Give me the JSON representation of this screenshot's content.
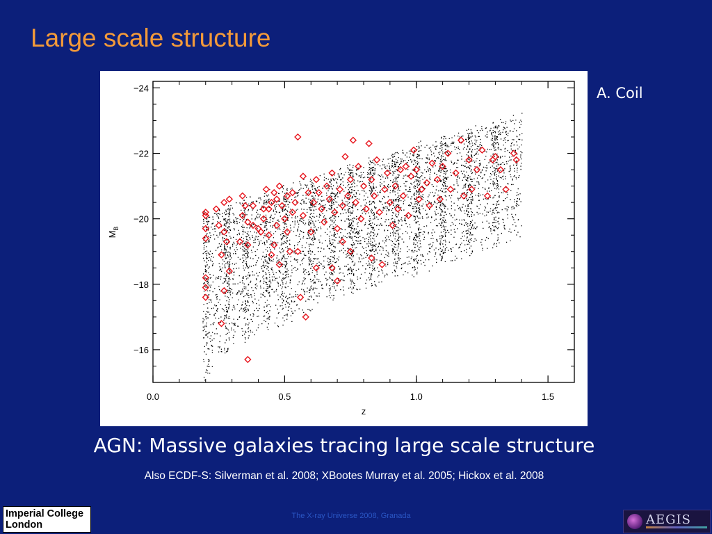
{
  "slide": {
    "title": "Large scale structure",
    "credit": "A. Coil",
    "headline": "AGN: Massive galaxies tracing large scale structure",
    "subline": "Also ECDF-S: Silverman et al. 2008; XBootes Murray et al. 2005; Hickox et al. 2008",
    "footer": "The X-ray Universe 2008, Granada",
    "logo_left": [
      "Imperial College",
      "London"
    ],
    "logo_right": "AEGIS"
  },
  "colors": {
    "background": "#0c1f7a",
    "title": "#f39a3a",
    "agn_marker": "#e8141c",
    "galaxy_point": "#000000"
  },
  "chart_data": {
    "type": "scatter",
    "title": "",
    "xlabel": "z",
    "ylabel": "M",
    "ylabel_subscript": "B",
    "xlim": [
      0.0,
      1.6
    ],
    "ylim": [
      -15.0,
      -24.2
    ],
    "y_inverted": true,
    "xticks": [
      0.0,
      0.5,
      1.0,
      1.5
    ],
    "xtick_labels": [
      "0.0",
      "0.5",
      "1.0",
      "1.5"
    ],
    "yticks": [
      -24,
      -22,
      -20,
      -18,
      -16
    ],
    "ytick_labels": [
      "−24",
      "−22",
      "−20",
      "−18",
      "−16"
    ],
    "grid": false,
    "series": [
      {
        "marker": "diamond",
        "color": "#e8141c",
        "points": [
          [
            0.2,
            -20.2
          ],
          [
            0.2,
            -20.1
          ],
          [
            0.2,
            -19.7
          ],
          [
            0.2,
            -19.4
          ],
          [
            0.2,
            -18.2
          ],
          [
            0.2,
            -17.9
          ],
          [
            0.2,
            -17.6
          ],
          [
            0.24,
            -20.3
          ],
          [
            0.25,
            -19.8
          ],
          [
            0.26,
            -18.9
          ],
          [
            0.27,
            -20.5
          ],
          [
            0.27,
            -19.6
          ],
          [
            0.27,
            -17.8
          ],
          [
            0.28,
            -19.3
          ],
          [
            0.29,
            -20.6
          ],
          [
            0.29,
            -18.4
          ],
          [
            0.26,
            -16.8
          ],
          [
            0.33,
            -19.3
          ],
          [
            0.34,
            -20.7
          ],
          [
            0.34,
            -20.1
          ],
          [
            0.35,
            -20.4
          ],
          [
            0.36,
            -19.9
          ],
          [
            0.36,
            -19.2
          ],
          [
            0.36,
            -15.7
          ],
          [
            0.38,
            -20.4
          ],
          [
            0.38,
            -19.8
          ],
          [
            0.4,
            -19.7
          ],
          [
            0.41,
            -19.6
          ],
          [
            0.42,
            -20.3
          ],
          [
            0.42,
            -20.0
          ],
          [
            0.43,
            -20.9
          ],
          [
            0.44,
            -20.3
          ],
          [
            0.44,
            -19.5
          ],
          [
            0.45,
            -20.5
          ],
          [
            0.45,
            -18.9
          ],
          [
            0.46,
            -20.8
          ],
          [
            0.46,
            -19.2
          ],
          [
            0.47,
            -20.6
          ],
          [
            0.47,
            -19.8
          ],
          [
            0.48,
            -21.0
          ],
          [
            0.48,
            -18.6
          ],
          [
            0.49,
            -20.4
          ],
          [
            0.5,
            -20.0
          ],
          [
            0.51,
            -20.7
          ],
          [
            0.51,
            -19.6
          ],
          [
            0.52,
            -19.0
          ],
          [
            0.53,
            -20.8
          ],
          [
            0.53,
            -20.2
          ],
          [
            0.54,
            -20.5
          ],
          [
            0.55,
            -22.5
          ],
          [
            0.55,
            -19.0
          ],
          [
            0.56,
            -17.6
          ],
          [
            0.57,
            -21.3
          ],
          [
            0.57,
            -20.1
          ],
          [
            0.58,
            -17.0
          ],
          [
            0.59,
            -20.8
          ],
          [
            0.6,
            -19.6
          ],
          [
            0.61,
            -20.5
          ],
          [
            0.62,
            -21.2
          ],
          [
            0.62,
            -18.5
          ],
          [
            0.63,
            -20.8
          ],
          [
            0.64,
            -20.3
          ],
          [
            0.65,
            -19.9
          ],
          [
            0.66,
            -21.0
          ],
          [
            0.67,
            -20.6
          ],
          [
            0.68,
            -21.4
          ],
          [
            0.68,
            -18.5
          ],
          [
            0.69,
            -20.2
          ],
          [
            0.7,
            -19.7
          ],
          [
            0.7,
            -18.1
          ],
          [
            0.71,
            -20.9
          ],
          [
            0.72,
            -20.4
          ],
          [
            0.72,
            -19.3
          ],
          [
            0.73,
            -21.9
          ],
          [
            0.74,
            -20.7
          ],
          [
            0.75,
            -21.2
          ],
          [
            0.75,
            -19.0
          ],
          [
            0.76,
            -22.4
          ],
          [
            0.77,
            -20.5
          ],
          [
            0.78,
            -21.6
          ],
          [
            0.79,
            -20.0
          ],
          [
            0.8,
            -21.0
          ],
          [
            0.81,
            -20.3
          ],
          [
            0.82,
            -22.3
          ],
          [
            0.83,
            -21.2
          ],
          [
            0.83,
            -18.8
          ],
          [
            0.84,
            -20.7
          ],
          [
            0.85,
            -21.8
          ],
          [
            0.86,
            -20.2
          ],
          [
            0.87,
            -18.6
          ],
          [
            0.88,
            -20.9
          ],
          [
            0.89,
            -21.4
          ],
          [
            0.9,
            -20.5
          ],
          [
            0.91,
            -19.8
          ],
          [
            0.92,
            -21.0
          ],
          [
            0.93,
            -20.3
          ],
          [
            0.94,
            -21.5
          ],
          [
            0.95,
            -20.7
          ],
          [
            0.96,
            -21.6
          ],
          [
            0.97,
            -20.1
          ],
          [
            0.98,
            -21.3
          ],
          [
            0.99,
            -22.1
          ],
          [
            1.0,
            -21.5
          ],
          [
            1.01,
            -20.6
          ],
          [
            1.02,
            -20.9
          ],
          [
            1.04,
            -21.1
          ],
          [
            1.05,
            -20.4
          ],
          [
            1.06,
            -21.7
          ],
          [
            1.08,
            -21.2
          ],
          [
            1.09,
            -20.6
          ],
          [
            1.1,
            -21.6
          ],
          [
            1.12,
            -22.0
          ],
          [
            1.13,
            -20.9
          ],
          [
            1.15,
            -21.4
          ],
          [
            1.17,
            -22.4
          ],
          [
            1.18,
            -20.7
          ],
          [
            1.2,
            -21.8
          ],
          [
            1.21,
            -20.9
          ],
          [
            1.23,
            -21.5
          ],
          [
            1.25,
            -22.1
          ],
          [
            1.27,
            -20.7
          ],
          [
            1.29,
            -21.8
          ],
          [
            1.3,
            -21.9
          ],
          [
            1.32,
            -21.5
          ],
          [
            1.34,
            -20.9
          ],
          [
            1.37,
            -22.0
          ],
          [
            1.38,
            -21.8
          ]
        ]
      }
    ]
  }
}
